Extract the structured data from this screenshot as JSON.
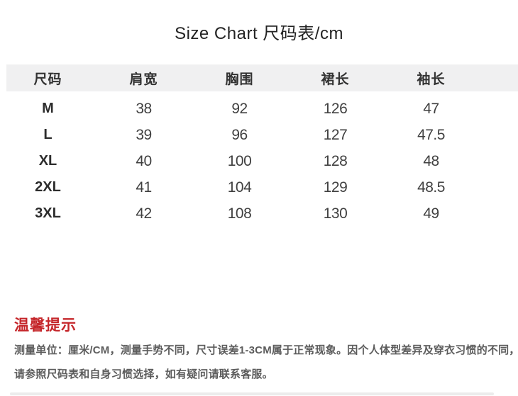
{
  "page": {
    "title": "Size Chart 尺码表/cm"
  },
  "chart_data": {
    "type": "table",
    "title": "Size Chart 尺码表/cm",
    "unit": "cm",
    "columns": [
      "尺码",
      "肩宽",
      "胸围",
      "裙长",
      "袖长"
    ],
    "rows": [
      [
        "M",
        38,
        92,
        126,
        47
      ],
      [
        "L",
        39,
        96,
        127,
        47.5
      ],
      [
        "XL",
        40,
        100,
        128,
        48
      ],
      [
        "2XL",
        41,
        104,
        129,
        48.5
      ],
      [
        "3XL",
        42,
        108,
        130,
        49
      ]
    ],
    "header_bg_color": "#f0f0f1"
  },
  "tips": {
    "heading": "温馨提示",
    "heading_color": "#c5262a",
    "lines": [
      "测量单位：厘米/CM，测量手势不同，尺寸误差1-3CM属于正常现象。因个人体型差异及穿衣习惯的不同，",
      "请参照尺码表和自身习惯选择，如有疑问请联系客服。"
    ]
  }
}
